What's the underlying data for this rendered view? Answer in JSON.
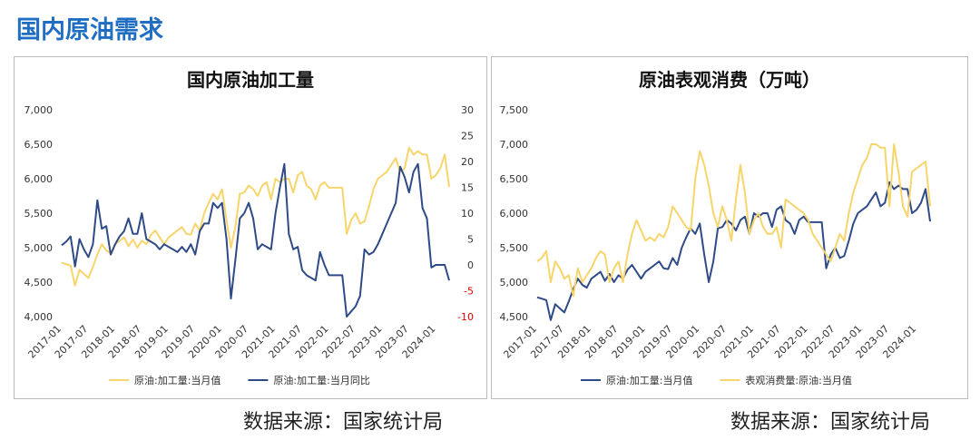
{
  "header": {
    "title": "国内原油需求"
  },
  "sources": [
    "数据来源：国家统计局",
    "数据来源：国家统计局"
  ],
  "chart_data": [
    {
      "type": "line",
      "title": "国内原油加工量",
      "grid": false,
      "legend": "bottom",
      "categories": [
        "2017-01",
        null,
        null,
        null,
        null,
        null,
        "2017-07",
        null,
        null,
        null,
        null,
        null,
        "2018-01",
        null,
        null,
        null,
        null,
        null,
        "2018-07",
        null,
        null,
        null,
        null,
        null,
        "2019-01",
        null,
        null,
        null,
        null,
        null,
        "2019-07",
        null,
        null,
        null,
        null,
        null,
        "2020-01",
        null,
        null,
        null,
        null,
        null,
        "2020-07",
        null,
        null,
        null,
        null,
        null,
        "2021-01",
        null,
        null,
        null,
        null,
        null,
        "2021-07",
        null,
        null,
        null,
        null,
        null,
        "2022-01",
        null,
        null,
        null,
        null,
        null,
        "2022-07",
        null,
        null,
        null,
        null,
        null,
        "2023-01",
        null,
        null,
        null,
        null,
        null,
        "2023-07",
        null,
        null,
        null,
        null,
        null,
        "2024-01",
        null,
        null,
        null
      ],
      "ylim": [
        4000,
        7000
      ],
      "yticks": [
        {
          "value": 4000,
          "label": "4,000"
        },
        {
          "value": 4500,
          "label": "4,500"
        },
        {
          "value": 5000,
          "label": "5,000"
        },
        {
          "value": 5500,
          "label": "5,500"
        },
        {
          "value": 6000,
          "label": "6,000"
        },
        {
          "value": 6500,
          "label": "6,500"
        },
        {
          "value": 7000,
          "label": "7,000"
        }
      ],
      "y2lim": [
        -10,
        30
      ],
      "y2ticks": [
        -10,
        -5,
        0,
        5,
        10,
        15,
        20,
        25,
        30
      ],
      "y2tick_negative_color": "#e60000",
      "series": [
        {
          "name": "原油:加工量:当月值",
          "color": "#f7d56b",
          "values": [
            4780,
            4760,
            4740,
            4450,
            4680,
            4620,
            4560,
            4720,
            4900,
            5050,
            4960,
            4920,
            5050,
            5100,
            5150,
            5020,
            5120,
            5000,
            5100,
            5050,
            5180,
            5250,
            5150,
            5050,
            5150,
            5200,
            5250,
            5300,
            5200,
            5190,
            5350,
            5250,
            5500,
            5650,
            5780,
            5700,
            5850,
            5400,
            5000,
            5300,
            5780,
            5800,
            5900,
            5850,
            5750,
            5900,
            5950,
            5700,
            6000,
            5950,
            6000,
            6000,
            5800,
            6050,
            6100,
            5900,
            5850,
            5700,
            5900,
            5950,
            5870,
            5870,
            5870,
            5870,
            5200,
            5400,
            5500,
            5350,
            5380,
            5600,
            5850,
            6000,
            6050,
            6100,
            6200,
            6300,
            6100,
            6150,
            6450,
            6350,
            6400,
            6350,
            6350,
            6000,
            6050,
            6150,
            6350,
            5880
          ]
        },
        {
          "name": "原油:加工量:当月同比",
          "color": "#2e4a87",
          "axis": "y2",
          "values": [
            3.8,
            4.5,
            5.5,
            -0.3,
            5,
            3,
            1.5,
            4,
            12.5,
            7,
            7.5,
            2,
            4,
            5.5,
            6.5,
            9,
            6,
            6,
            10,
            5,
            4.5,
            4,
            3,
            4,
            3.5,
            3,
            2.5,
            3.5,
            2.5,
            4,
            2,
            6.5,
            8,
            8,
            12,
            11,
            12,
            5,
            -6.5,
            1,
            9,
            10,
            12,
            9,
            3,
            4,
            3.5,
            3,
            10,
            15,
            19.5,
            6,
            3,
            3.5,
            -1,
            -2,
            -2.5,
            -3,
            2.5,
            0,
            -2,
            -2,
            -2,
            -2,
            -10,
            -9,
            -8,
            -6,
            3,
            2,
            2.5,
            4,
            6,
            8,
            10,
            12,
            19,
            17,
            14,
            18,
            19.5,
            11,
            9,
            -0.5,
            0,
            0,
            0,
            -3
          ]
        }
      ]
    },
    {
      "type": "line",
      "title": "原油表观消费（万吨）",
      "grid": false,
      "legend": "bottom",
      "categories": [
        "2017-01",
        null,
        null,
        null,
        null,
        null,
        "2017-07",
        null,
        null,
        null,
        null,
        null,
        "2018-01",
        null,
        null,
        null,
        null,
        null,
        "2018-07",
        null,
        null,
        null,
        null,
        null,
        "2019-01",
        null,
        null,
        null,
        null,
        null,
        "2019-07",
        null,
        null,
        null,
        null,
        null,
        "2020-01",
        null,
        null,
        null,
        null,
        null,
        "2020-07",
        null,
        null,
        null,
        null,
        null,
        "2021-01",
        null,
        null,
        null,
        null,
        null,
        "2021-07",
        null,
        null,
        null,
        null,
        null,
        "2022-01",
        null,
        null,
        null,
        null,
        null,
        "2022-07",
        null,
        null,
        null,
        null,
        null,
        "2023-01",
        null,
        null,
        null,
        null,
        null,
        "2023-07",
        null,
        null,
        null,
        null,
        null,
        "2024-01",
        null,
        null,
        null
      ],
      "ylim": [
        4500,
        7500
      ],
      "yticks": [
        {
          "value": 4500,
          "label": "4,500"
        },
        {
          "value": 5000,
          "label": "5,000"
        },
        {
          "value": 5500,
          "label": "5,500"
        },
        {
          "value": 6000,
          "label": "6,000"
        },
        {
          "value": 6500,
          "label": "6,500"
        },
        {
          "value": 7000,
          "label": "7,000"
        },
        {
          "value": 7500,
          "label": "7,500"
        }
      ],
      "series": [
        {
          "name": "原油:加工量:当月值",
          "color": "#2e4a87",
          "values": [
            4780,
            4760,
            4740,
            4450,
            4680,
            4620,
            4560,
            4720,
            4900,
            5050,
            4960,
            4920,
            5050,
            5100,
            5150,
            5020,
            5120,
            5000,
            5100,
            5050,
            5180,
            5250,
            5150,
            5050,
            5150,
            5200,
            5250,
            5300,
            5200,
            5190,
            5350,
            5250,
            5500,
            5650,
            5780,
            5700,
            5850,
            5400,
            5000,
            5300,
            5780,
            5800,
            5900,
            5850,
            5750,
            5900,
            5950,
            5700,
            6000,
            5950,
            6000,
            6000,
            5800,
            6050,
            6100,
            5900,
            5850,
            5700,
            5900,
            5950,
            5870,
            5870,
            5870,
            5870,
            5200,
            5400,
            5500,
            5350,
            5380,
            5600,
            5850,
            6000,
            6050,
            6100,
            6200,
            6300,
            6100,
            6150,
            6450,
            6350,
            6400,
            6350,
            6350,
            6000,
            6050,
            6150,
            6350,
            5880
          ]
        },
        {
          "name": "表观消费量:原油:当月值",
          "color": "#f7d56b",
          "values": [
            5300,
            5350,
            5450,
            5000,
            5300,
            5200,
            5050,
            5100,
            4800,
            5200,
            5000,
            5100,
            5200,
            5350,
            5450,
            5400,
            5000,
            5200,
            5300,
            5000,
            5400,
            5700,
            5900,
            5750,
            5600,
            5650,
            5600,
            5700,
            5650,
            5800,
            6100,
            6000,
            5900,
            5800,
            5750,
            6500,
            6900,
            6700,
            6400,
            6000,
            5800,
            6100,
            5900,
            5600,
            6200,
            6700,
            6300,
            5700,
            5900,
            6000,
            5800,
            5700,
            5700,
            5800,
            5500,
            6200,
            6150,
            6100,
            6050,
            6000,
            5900,
            5700,
            5600,
            5500,
            5400,
            5300,
            5500,
            5700,
            5600,
            6000,
            6300,
            6500,
            6700,
            6800,
            7000,
            7000,
            6950,
            6950,
            6100,
            7000,
            6600,
            6100,
            5950,
            6600,
            6650,
            6700,
            6750,
            6100
          ]
        }
      ]
    }
  ]
}
